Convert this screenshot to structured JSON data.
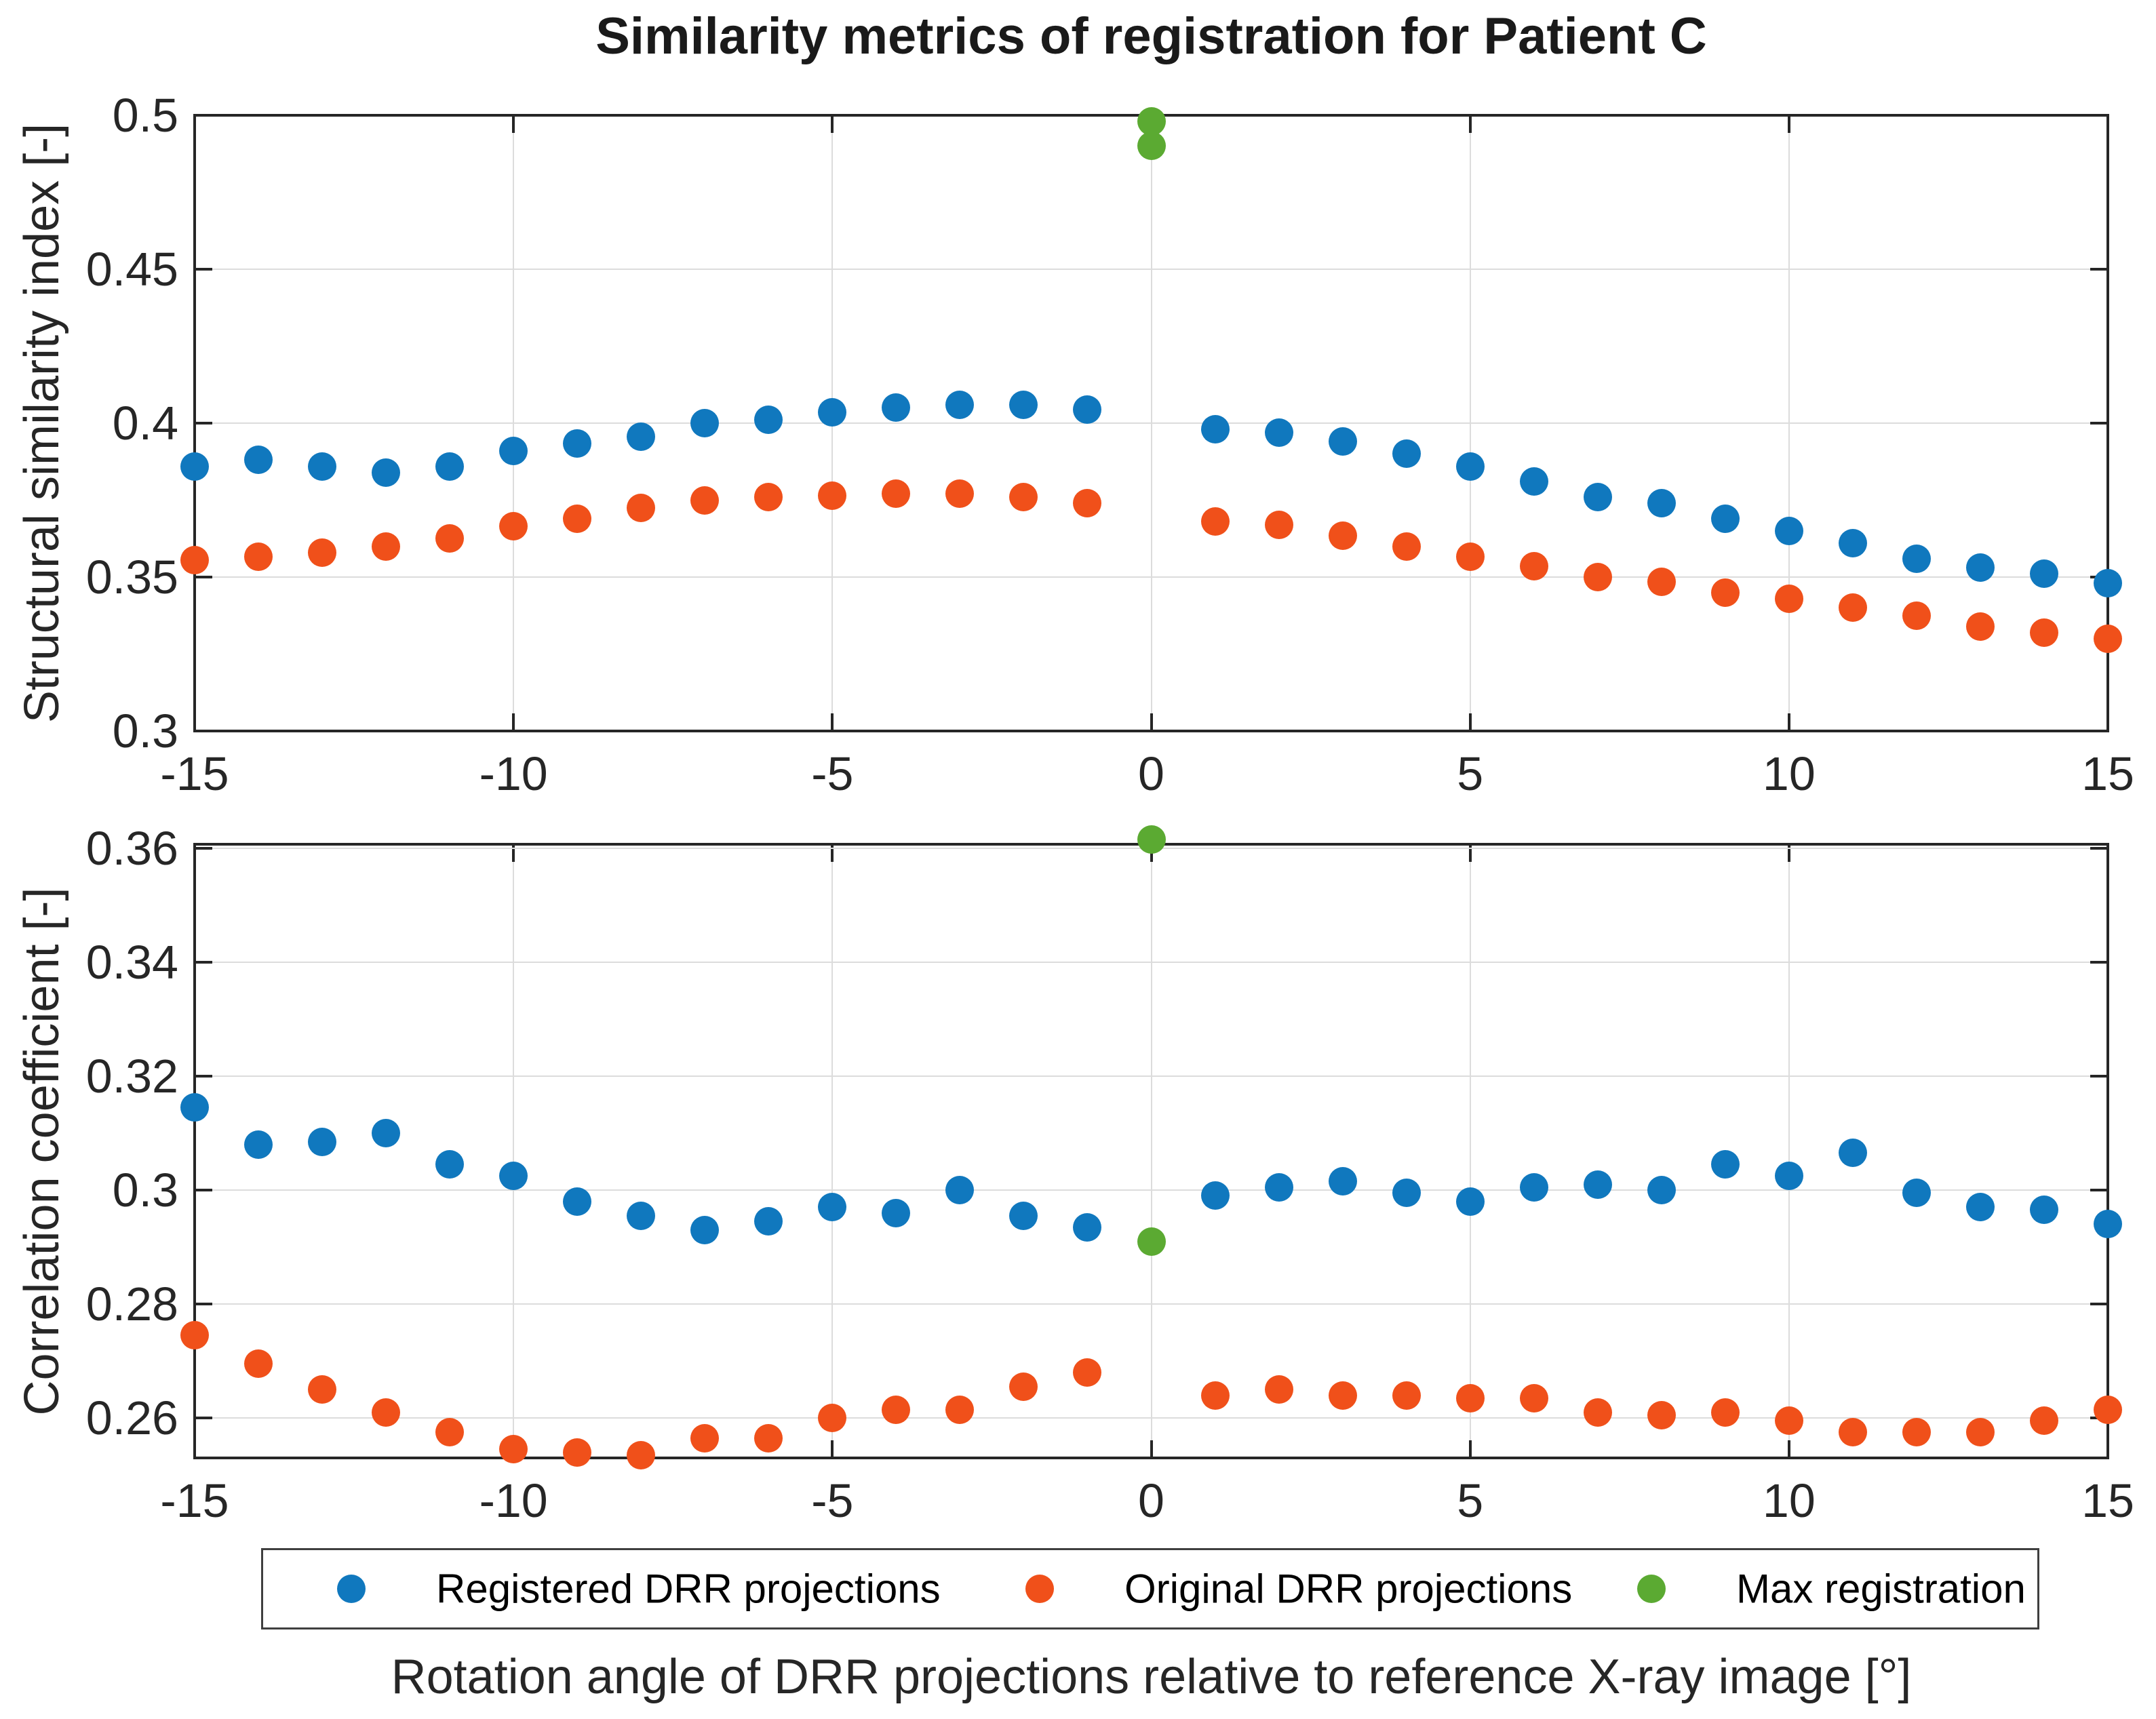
{
  "title": "Similarity metrics of registration for Patient C",
  "xlabel": "Rotation angle of DRR projections relative to reference X-ray image [°]",
  "colors": {
    "registered": "#1078BE",
    "original": "#F0501A",
    "max_registration": "#5BAA32",
    "axis": "#262626",
    "grid": "#dcdcdc"
  },
  "legend": {
    "items": [
      {
        "label": "Registered DRR projections",
        "color": "#1078BE"
      },
      {
        "label": "Original DRR projections",
        "color": "#F0501A"
      },
      {
        "label": "Max registration",
        "color": "#5BAA32"
      }
    ]
  },
  "chart_data": [
    {
      "type": "scatter",
      "ylabel": "Structural similarity index [-]",
      "xlim": [
        -15,
        15
      ],
      "ylim": [
        0.3,
        0.5
      ],
      "xticks": [
        -15,
        -10,
        -5,
        0,
        5,
        10,
        15
      ],
      "xtick_labels": [
        "-15",
        "-10",
        "-5",
        "0",
        "5",
        "10",
        "15"
      ],
      "yticks": [
        0.3,
        0.35,
        0.4,
        0.45,
        0.5
      ],
      "ytick_labels": [
        "0.3",
        "0.35",
        "0.4",
        "0.45",
        "0.5"
      ],
      "grid": true,
      "series": [
        {
          "name": "Registered DRR projections",
          "color": "#1078BE",
          "x": [
            -15,
            -14,
            -13,
            -12,
            -11,
            -10,
            -9,
            -8,
            -7,
            -6,
            -5,
            -4,
            -3,
            -2,
            -1,
            1,
            2,
            3,
            4,
            5,
            6,
            7,
            8,
            9,
            10,
            11,
            12,
            13,
            14,
            15
          ],
          "y": [
            0.386,
            0.388,
            0.386,
            0.384,
            0.386,
            0.391,
            0.3935,
            0.3955,
            0.4,
            0.401,
            0.4035,
            0.405,
            0.406,
            0.406,
            0.4045,
            0.398,
            0.397,
            0.394,
            0.39,
            0.386,
            0.381,
            0.376,
            0.374,
            0.369,
            0.365,
            0.361,
            0.356,
            0.353,
            0.351,
            0.348
          ]
        },
        {
          "name": "Original DRR projections",
          "color": "#F0501A",
          "x": [
            -15,
            -14,
            -13,
            -12,
            -11,
            -10,
            -9,
            -8,
            -7,
            -6,
            -5,
            -4,
            -3,
            -2,
            -1,
            1,
            2,
            3,
            4,
            5,
            6,
            7,
            8,
            9,
            10,
            11,
            12,
            13,
            14,
            15
          ],
          "y": [
            0.3555,
            0.3565,
            0.358,
            0.36,
            0.3625,
            0.3665,
            0.369,
            0.3725,
            0.375,
            0.376,
            0.3765,
            0.377,
            0.377,
            0.376,
            0.374,
            0.368,
            0.367,
            0.3635,
            0.36,
            0.3565,
            0.3535,
            0.35,
            0.3485,
            0.345,
            0.343,
            0.34,
            0.3375,
            0.334,
            0.332,
            0.33
          ]
        },
        {
          "name": "Max registration",
          "color": "#5BAA32",
          "x": [
            0,
            0
          ],
          "y": [
            0.498,
            0.49
          ]
        }
      ]
    },
    {
      "type": "scatter",
      "ylabel": "Correlation coefficient [-]",
      "xlim": [
        -15,
        15
      ],
      "ylim": [
        0.253,
        0.3607
      ],
      "xticks": [
        -15,
        -10,
        -5,
        0,
        5,
        10,
        15
      ],
      "xtick_labels": [
        "-15",
        "-10",
        "-5",
        "0",
        "5",
        "10",
        "15"
      ],
      "yticks": [
        0.26,
        0.28,
        0.3,
        0.32,
        0.34,
        0.36
      ],
      "ytick_labels": [
        "0.26",
        "0.28",
        "0.3",
        "0.32",
        "0.34",
        "0.36"
      ],
      "grid": true,
      "series": [
        {
          "name": "Registered DRR projections",
          "color": "#1078BE",
          "x": [
            -15,
            -14,
            -13,
            -12,
            -11,
            -10,
            -9,
            -8,
            -7,
            -6,
            -5,
            -4,
            -3,
            -2,
            -1,
            1,
            2,
            3,
            4,
            5,
            6,
            7,
            8,
            9,
            10,
            11,
            12,
            13,
            14,
            15
          ],
          "y": [
            0.3145,
            0.308,
            0.3085,
            0.31,
            0.3045,
            0.3025,
            0.298,
            0.2955,
            0.293,
            0.2945,
            0.297,
            0.296,
            0.3,
            0.2955,
            0.2935,
            0.299,
            0.3005,
            0.3015,
            0.2995,
            0.298,
            0.3005,
            0.301,
            0.3,
            0.3045,
            0.3025,
            0.3065,
            0.2995,
            0.297,
            0.2965,
            0.294
          ]
        },
        {
          "name": "Original DRR projections",
          "color": "#F0501A",
          "x": [
            -15,
            -14,
            -13,
            -12,
            -11,
            -10,
            -9,
            -8,
            -7,
            -6,
            -5,
            -4,
            -3,
            -2,
            -1,
            1,
            2,
            3,
            4,
            5,
            6,
            7,
            8,
            9,
            10,
            11,
            12,
            13,
            14,
            15
          ],
          "y": [
            0.2745,
            0.2695,
            0.265,
            0.261,
            0.2575,
            0.2545,
            0.254,
            0.2535,
            0.2565,
            0.2565,
            0.26,
            0.2615,
            0.2615,
            0.2655,
            0.268,
            0.264,
            0.265,
            0.264,
            0.264,
            0.2635,
            0.2635,
            0.261,
            0.2605,
            0.261,
            0.2595,
            0.2575,
            0.2575,
            0.2575,
            0.2595,
            0.2615
          ]
        },
        {
          "name": "Max registration",
          "color": "#5BAA32",
          "x": [
            0,
            0
          ],
          "y": [
            0.3615,
            0.291
          ]
        }
      ]
    }
  ]
}
